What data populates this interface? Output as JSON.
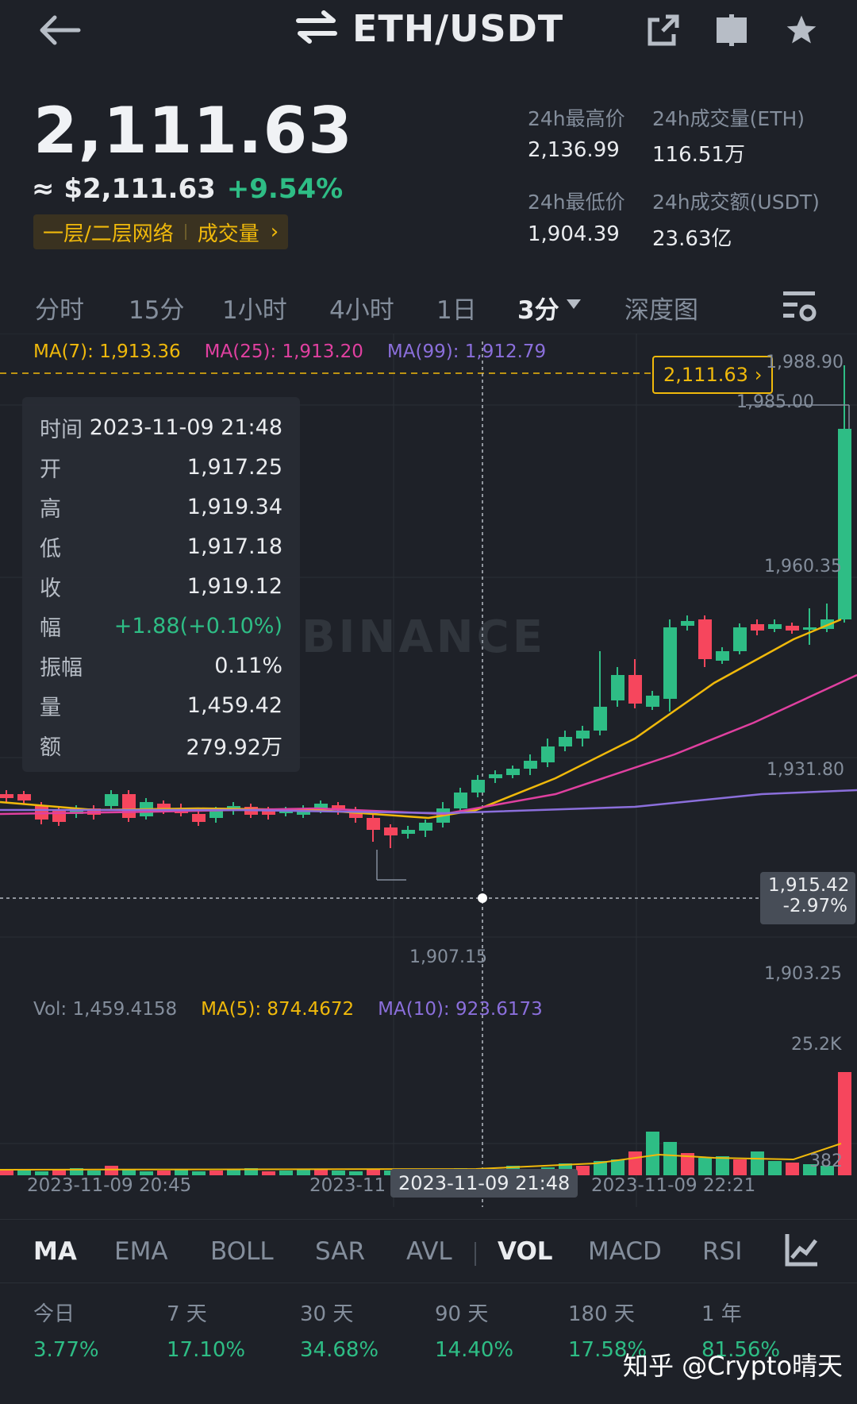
{
  "header": {
    "pair": "ETH/USDT",
    "icons": {
      "back": "back-arrow-icon",
      "swap": "swap-icon",
      "share": "share-icon",
      "book": "book-icon",
      "favorite": "star-icon"
    }
  },
  "ticker": {
    "last_price": "2,111.63",
    "usd_approx": "≈ $2,111.63",
    "change_pct": "+9.54%",
    "tag_network": "一层/二层网络",
    "tag_volume": "成交量",
    "tag_chevron": "›",
    "high_label": "24h最高价",
    "high_value": "2,136.99",
    "low_label": "24h最低价",
    "low_value": "1,904.39",
    "vol_eth_label": "24h成交量(ETH)",
    "vol_eth_value": "116.51万",
    "vol_usdt_label": "24h成交额(USDT)",
    "vol_usdt_value": "23.63亿"
  },
  "timeframes": {
    "items": [
      "分时",
      "15分",
      "1小时",
      "4小时",
      "1日",
      "3分",
      "深度图"
    ],
    "active": "3分",
    "dropdown_icon": "caret-down-icon",
    "settings_icon": "chart-settings-icon"
  },
  "chart": {
    "ma7_label": "MA(7): 1,913.36",
    "ma25_label": "MA(25): 1,913.20",
    "ma99_label": "MA(99): 1,912.79",
    "current_price_tag": "2,111.63",
    "current_price_chevron": "›",
    "y_labels": [
      "1,988.90",
      "1,985.00",
      "1,960.35",
      "1,931.80",
      "1,903.25"
    ],
    "low_marker": "1,907.15",
    "cursor_price": "1,915.42",
    "cursor_change": "-2.97%",
    "watermark": "BINANCE",
    "colors": {
      "up": "#2ebd85",
      "down": "#f6465d",
      "ma7": "#f0b90b",
      "ma25": "#e040a0",
      "ma99": "#8b6fdc"
    }
  },
  "tooltip": {
    "rows": [
      {
        "k": "时间",
        "v": "2023-11-09 21:48"
      },
      {
        "k": "开",
        "v": "1,917.25"
      },
      {
        "k": "高",
        "v": "1,919.34"
      },
      {
        "k": "低",
        "v": "1,917.18"
      },
      {
        "k": "收",
        "v": "1,919.12"
      },
      {
        "k": "幅",
        "v": "+1.88(+0.10%)"
      },
      {
        "k": "振幅",
        "v": "0.11%"
      },
      {
        "k": "量",
        "v": "1,459.42"
      },
      {
        "k": "额",
        "v": "279.92万"
      }
    ]
  },
  "volume": {
    "vol_label": "Vol: 1,459.4158",
    "ma5_label": "MA(5): 874.4672",
    "ma10_label": "MA(10): 923.6173",
    "y_top": "25.2K",
    "y_bottom": "382"
  },
  "x_axis": [
    "2023-11-09 20:45",
    "2023-11",
    "2023-11-09 21:48",
    "2023-11-09 22:21"
  ],
  "indicators": {
    "items": [
      "MA",
      "EMA",
      "BOLL",
      "SAR",
      "AVL",
      "VOL",
      "MACD",
      "RSI"
    ],
    "active_main": "MA",
    "active_sub": "VOL",
    "icon": "indicator-chart-icon"
  },
  "performance": [
    {
      "label": "今日",
      "value": "3.77%"
    },
    {
      "label": "7 天",
      "value": "17.10%"
    },
    {
      "label": "30 天",
      "value": "34.68%"
    },
    {
      "label": "90 天",
      "value": "14.40%"
    },
    {
      "label": "180 天",
      "value": "17.58%"
    },
    {
      "label": "1 年",
      "value": "81.56%"
    }
  ],
  "footer_watermark": "知乎 @Crypto晴天"
}
